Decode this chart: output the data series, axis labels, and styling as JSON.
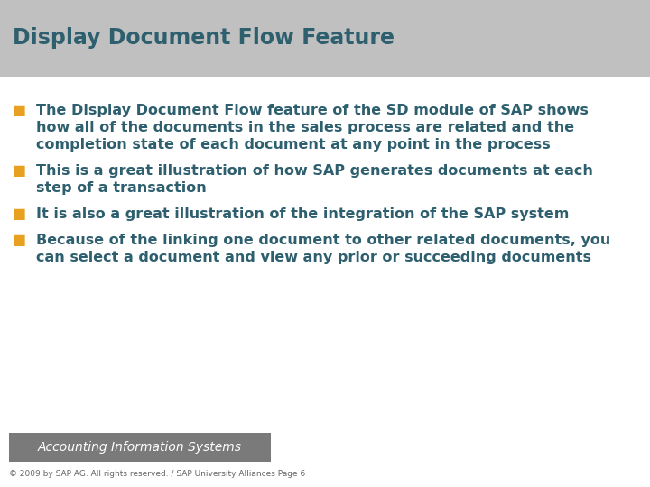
{
  "title": "Display Document Flow Feature",
  "title_color": "#2E5F6E",
  "title_bg_color": "#C0C0C0",
  "title_fontsize": 17,
  "bg_color": "#FFFFFF",
  "bullet_color": "#E8A020",
  "text_color": "#2E5F6E",
  "bullet_char": "■",
  "bullets": [
    {
      "first_line": "The Display Document Flow feature of the SD module of SAP shows",
      "rest_lines": [
        "how all of the documents in the sales process are related and the",
        "completion state of each document at any point in the process"
      ]
    },
    {
      "first_line": "This is a great illustration of how SAP generates documents at each",
      "rest_lines": [
        "step of a transaction"
      ]
    },
    {
      "first_line": "It is also a great illustration of the integration of the SAP system",
      "rest_lines": []
    },
    {
      "first_line": "Because of the linking one document to other related documents, you",
      "rest_lines": [
        "can select a document and view any prior or succeeding documents"
      ]
    }
  ],
  "footer_text": "Accounting Information Systems",
  "footer_bg": "#7A7A7A",
  "footer_text_color": "#FFFFFF",
  "copyright_text": "© 2009 by SAP AG. All rights reserved. / SAP University Alliances Page 6",
  "copyright_color": "#666666",
  "bullet_fontsize": 11.5,
  "footer_fontsize": 10,
  "copyright_fontsize": 6.5
}
